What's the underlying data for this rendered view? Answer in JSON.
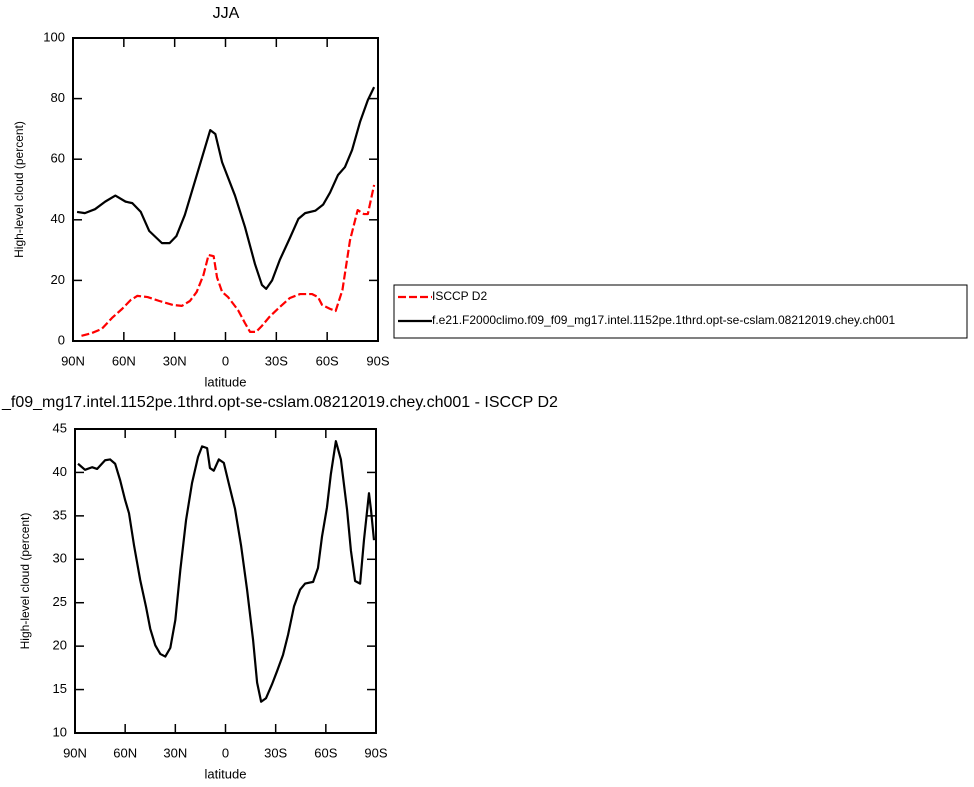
{
  "chart_data": [
    {
      "type": "line",
      "title": "JJA",
      "xlabel": "latitude",
      "ylabel": "High-level cloud (percent)",
      "xlim": [
        90,
        -90
      ],
      "xticks": [
        {
          "value": 90,
          "label": "90N"
        },
        {
          "value": 60,
          "label": "60N"
        },
        {
          "value": 30,
          "label": "30N"
        },
        0,
        {
          "value": -30,
          "label": "30S"
        },
        {
          "value": -60,
          "label": "60S"
        },
        {
          "value": -90,
          "label": "90S"
        }
      ],
      "ylim": [
        0,
        100
      ],
      "yticks": [
        0,
        20,
        40,
        60,
        80,
        100
      ],
      "legend": "right",
      "series": [
        {
          "name": "ISCCP D2",
          "color": "#ff0000",
          "dash": true,
          "x": [
            85,
            79,
            73,
            67,
            61,
            56,
            52,
            46,
            39,
            31,
            25.7,
            21,
            17,
            13,
            10,
            7,
            5,
            2,
            -1.5,
            -7.4,
            -11.5,
            -14.5,
            -18,
            -21.5,
            -26,
            -32,
            -38,
            -44,
            -51,
            -54.6,
            -57,
            -61.7,
            -65,
            -69,
            -73.5,
            -78,
            -81.7,
            -84,
            -87.7
          ],
          "values": [
            1.7,
            2.6,
            4,
            7.6,
            10.6,
            13.5,
            14.9,
            14.5,
            13.2,
            11.9,
            11.6,
            13.2,
            16.2,
            21.8,
            28.4,
            28,
            21,
            16.2,
            14.5,
            10.2,
            5.9,
            3,
            3,
            5,
            8,
            11.2,
            14.2,
            15.5,
            15.5,
            14.5,
            11.9,
            10.6,
            9.9,
            16.8,
            33.3,
            43.2,
            41.9,
            41.9,
            51.5
          ]
        },
        {
          "name": "f.e21.F2000climo.f09_f09_mg17.intel.1152pe.1thrd.opt-se-cslam.08212019.chey.ch001",
          "color": "#000000",
          "dash": false,
          "x": [
            87.6,
            83,
            77,
            71,
            65,
            59,
            55,
            50,
            45,
            37.5,
            33,
            29,
            24,
            18,
            12,
            9,
            6,
            2,
            -5.6,
            -11.5,
            -17.4,
            -21.5,
            -24,
            -27.5,
            -32,
            -38,
            -43,
            -47,
            -53,
            -57.6,
            -61.7,
            -66.4,
            -70.5,
            -74.7,
            -79.4,
            -84,
            -87.7
          ],
          "values": [
            42.6,
            42.2,
            43.5,
            46,
            48,
            46,
            45.5,
            42.6,
            36.3,
            32.3,
            32.3,
            34.6,
            41.6,
            52.8,
            64,
            69.6,
            68.3,
            59,
            48,
            37.6,
            25.4,
            18.5,
            17.2,
            20,
            26.7,
            34,
            40.3,
            42.2,
            43,
            45,
            49,
            54.8,
            57.4,
            63,
            72.3,
            79.5,
            83.8
          ]
        }
      ]
    },
    {
      "type": "line",
      "title": "_f09_mg17.intel.1152pe.1thrd.opt-se-cslam.08212019.chey.ch001 - ISCCP D2",
      "xlabel": "latitude",
      "ylabel": "High-level cloud (percent)",
      "xlim": [
        90,
        -90
      ],
      "xticks": [
        {
          "value": 90,
          "label": "90N"
        },
        {
          "value": 60,
          "label": "60N"
        },
        {
          "value": 30,
          "label": "30N"
        },
        0,
        {
          "value": -30,
          "label": "30S"
        },
        {
          "value": -60,
          "label": "60S"
        },
        {
          "value": -90,
          "label": "90S"
        }
      ],
      "ylim": [
        10,
        45
      ],
      "yticks": [
        10,
        15,
        20,
        25,
        30,
        35,
        40,
        45
      ],
      "series": [
        {
          "color": "#000000",
          "dash": false,
          "x": [
            88.2,
            84,
            79.8,
            76.8,
            72,
            69,
            66,
            63,
            60,
            57.7,
            54.7,
            51,
            47.5,
            45,
            42,
            39,
            36,
            33,
            30,
            27,
            23.6,
            20,
            16.4,
            14,
            11,
            9.3,
            7,
            4,
            1,
            -2,
            -5.7,
            -9.3,
            -12.9,
            -16.5,
            -18.9,
            -21.3,
            -24.2,
            -27.8,
            -30.8,
            -34.4,
            -37.4,
            -41,
            -44.6,
            -47.6,
            -52.4,
            -55.3,
            -57.7,
            -60.7,
            -63,
            -66,
            -69,
            -72.7,
            -75,
            -77.5,
            -80.5,
            -82.8,
            -85.8,
            -87,
            -88.8
          ],
          "values": [
            41,
            40.3,
            40.6,
            40.4,
            41.4,
            41.5,
            41,
            39.1,
            36.8,
            35.3,
            31.6,
            27.6,
            24.5,
            22,
            20.1,
            19.1,
            18.8,
            19.8,
            23,
            28.8,
            34.5,
            38.8,
            41.8,
            43,
            42.8,
            40.5,
            40.2,
            41.5,
            41.1,
            38.7,
            35.8,
            31.6,
            26.5,
            20.7,
            15.8,
            13.6,
            14,
            15.6,
            17.1,
            19,
            21.3,
            24.6,
            26.5,
            27.2,
            27.4,
            29,
            32.6,
            36,
            39.8,
            43.6,
            41.5,
            35.7,
            31,
            27.5,
            27.2,
            32.2,
            37.6,
            35.7,
            32.2
          ]
        }
      ]
    }
  ]
}
